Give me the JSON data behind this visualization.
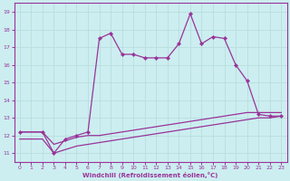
{
  "xlabel": "Windchill (Refroidissement éolien,°C)",
  "bg_color": "#cceef0",
  "grid_color": "#aadddd",
  "line_color": "#993399",
  "xlim": [
    -0.5,
    23.5
  ],
  "ylim": [
    10.5,
    19.5
  ],
  "yticks": [
    11,
    12,
    13,
    14,
    15,
    16,
    17,
    18,
    19
  ],
  "xticks": [
    0,
    1,
    2,
    3,
    4,
    5,
    6,
    7,
    8,
    9,
    10,
    11,
    12,
    13,
    14,
    15,
    16,
    17,
    18,
    19,
    20,
    21,
    22,
    23
  ],
  "series": {
    "line_bottom": {
      "x": [
        0,
        1,
        2,
        3,
        4,
        5,
        6,
        7,
        8,
        9,
        10,
        11,
        12,
        13,
        14,
        15,
        16,
        17,
        18,
        19,
        20,
        21,
        22,
        23
      ],
      "y": [
        11.8,
        11.8,
        11.8,
        11.0,
        11.2,
        11.4,
        11.5,
        11.6,
        11.7,
        11.8,
        11.9,
        12.0,
        12.1,
        12.2,
        12.3,
        12.4,
        12.5,
        12.6,
        12.7,
        12.8,
        12.9,
        13.0,
        13.0,
        13.1
      ]
    },
    "line_middle": {
      "x": [
        0,
        1,
        2,
        3,
        4,
        5,
        6,
        7,
        8,
        9,
        10,
        11,
        12,
        13,
        14,
        15,
        16,
        17,
        18,
        19,
        20,
        21,
        22,
        23
      ],
      "y": [
        12.2,
        12.2,
        12.2,
        11.5,
        11.7,
        11.9,
        12.0,
        12.0,
        12.1,
        12.2,
        12.3,
        12.4,
        12.5,
        12.6,
        12.7,
        12.8,
        12.9,
        13.0,
        13.1,
        13.2,
        13.3,
        13.3,
        13.3,
        13.3
      ]
    },
    "line_spiky": {
      "x": [
        0,
        2,
        3,
        4,
        5,
        6,
        7,
        8,
        9,
        10,
        11,
        12,
        13,
        14,
        15,
        16,
        17,
        18,
        19,
        20,
        21,
        22,
        23
      ],
      "y": [
        12.2,
        12.2,
        11.0,
        11.8,
        12.0,
        12.2,
        17.5,
        17.8,
        16.6,
        16.6,
        16.4,
        16.4,
        16.4,
        17.2,
        18.9,
        17.2,
        17.6,
        17.5,
        16.0,
        15.1,
        13.2,
        13.1,
        13.1
      ]
    }
  }
}
